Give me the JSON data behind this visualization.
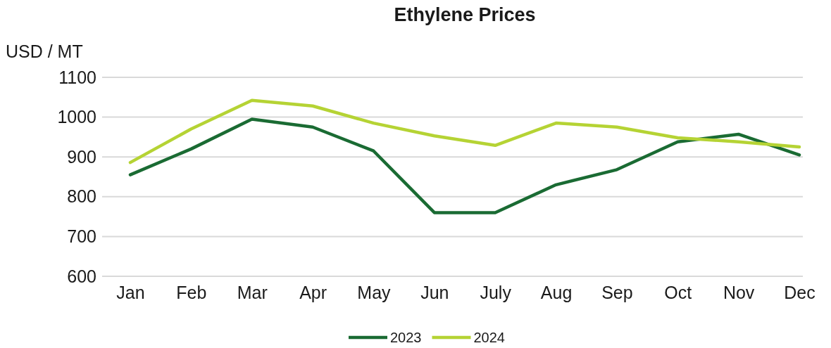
{
  "chart_data": {
    "type": "line",
    "title": "Ethylene Prices",
    "ylabel": "USD / MT",
    "categories": [
      "Jan",
      "Feb",
      "Mar",
      "Apr",
      "May",
      "Jun",
      "July",
      "Aug",
      "Sep",
      "Oct",
      "Nov",
      "Dec"
    ],
    "series": [
      {
        "name": "2023",
        "color": "#1a6b33",
        "values": [
          855,
          920,
          995,
          975,
          915,
          760,
          760,
          830,
          868,
          938,
          957,
          905
        ]
      },
      {
        "name": "2024",
        "color": "#b5d334",
        "values": [
          886,
          970,
          1042,
          1028,
          985,
          953,
          929,
          985,
          975,
          948,
          938,
          925
        ]
      }
    ],
    "ylim": [
      600,
      1100
    ],
    "yticks": [
      600,
      700,
      800,
      900,
      1000,
      1100
    ],
    "grid": "y",
    "legend": "bottom",
    "marker": "none",
    "line_style": "solid"
  }
}
